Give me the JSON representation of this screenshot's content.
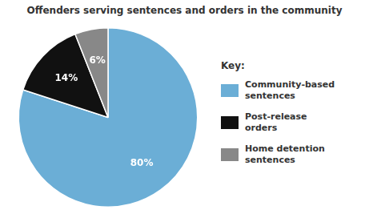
{
  "chart_data": {
    "type": "pie",
    "title": "Offenders serving sentences and orders in the community",
    "categories": [
      "Community-based\nsentences",
      "Post-release\norders",
      "Home detention\nsentences"
    ],
    "values": [
      80,
      14,
      6
    ],
    "value_labels": [
      "80%",
      "14%",
      "6%"
    ],
    "colors": [
      "#6baed6",
      "#111111",
      "#888888"
    ],
    "data_labels": true,
    "legend": "right",
    "legend_title": "Key:"
  }
}
